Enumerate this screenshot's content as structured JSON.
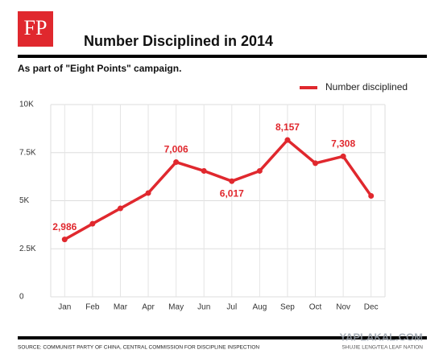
{
  "brand": "FP",
  "chart_data": {
    "type": "line",
    "title": "Number Disciplined in 2014",
    "subtitle": "As part of \"Eight Points\" campaign.",
    "categories": [
      "Jan",
      "Feb",
      "Mar",
      "Apr",
      "May",
      "Jun",
      "Jul",
      "Aug",
      "Sep",
      "Oct",
      "Nov",
      "Dec"
    ],
    "series": [
      {
        "name": "Number disciplined",
        "color": "#e0282e",
        "values": [
          2986,
          3800,
          4600,
          5400,
          7006,
          6550,
          6017,
          6550,
          8157,
          6950,
          7308,
          5250
        ],
        "value_labels": [
          "2,986",
          null,
          null,
          null,
          "7,006",
          null,
          "6,017",
          null,
          "8,157",
          null,
          "7,308",
          null
        ]
      }
    ],
    "ylim": [
      0,
      10000
    ],
    "yticks": [
      0,
      {
        "value": 2500,
        "label": "2.5K"
      },
      {
        "value": 5000,
        "label": "5K"
      },
      {
        "value": 7500,
        "label": "7.5K"
      },
      {
        "value": 10000,
        "label": "10K"
      }
    ],
    "grid": true,
    "legend": "top-right"
  },
  "footer": {
    "source": "SOURCE: COMMUNIST PARTY OF CHINA, CENTRAL COMMISSION FOR DISCIPLINE INSPECTION",
    "credit": "SHUJIE LENG/TEA LEAF NATION",
    "watermark": "YAPLAKAL.COM"
  }
}
